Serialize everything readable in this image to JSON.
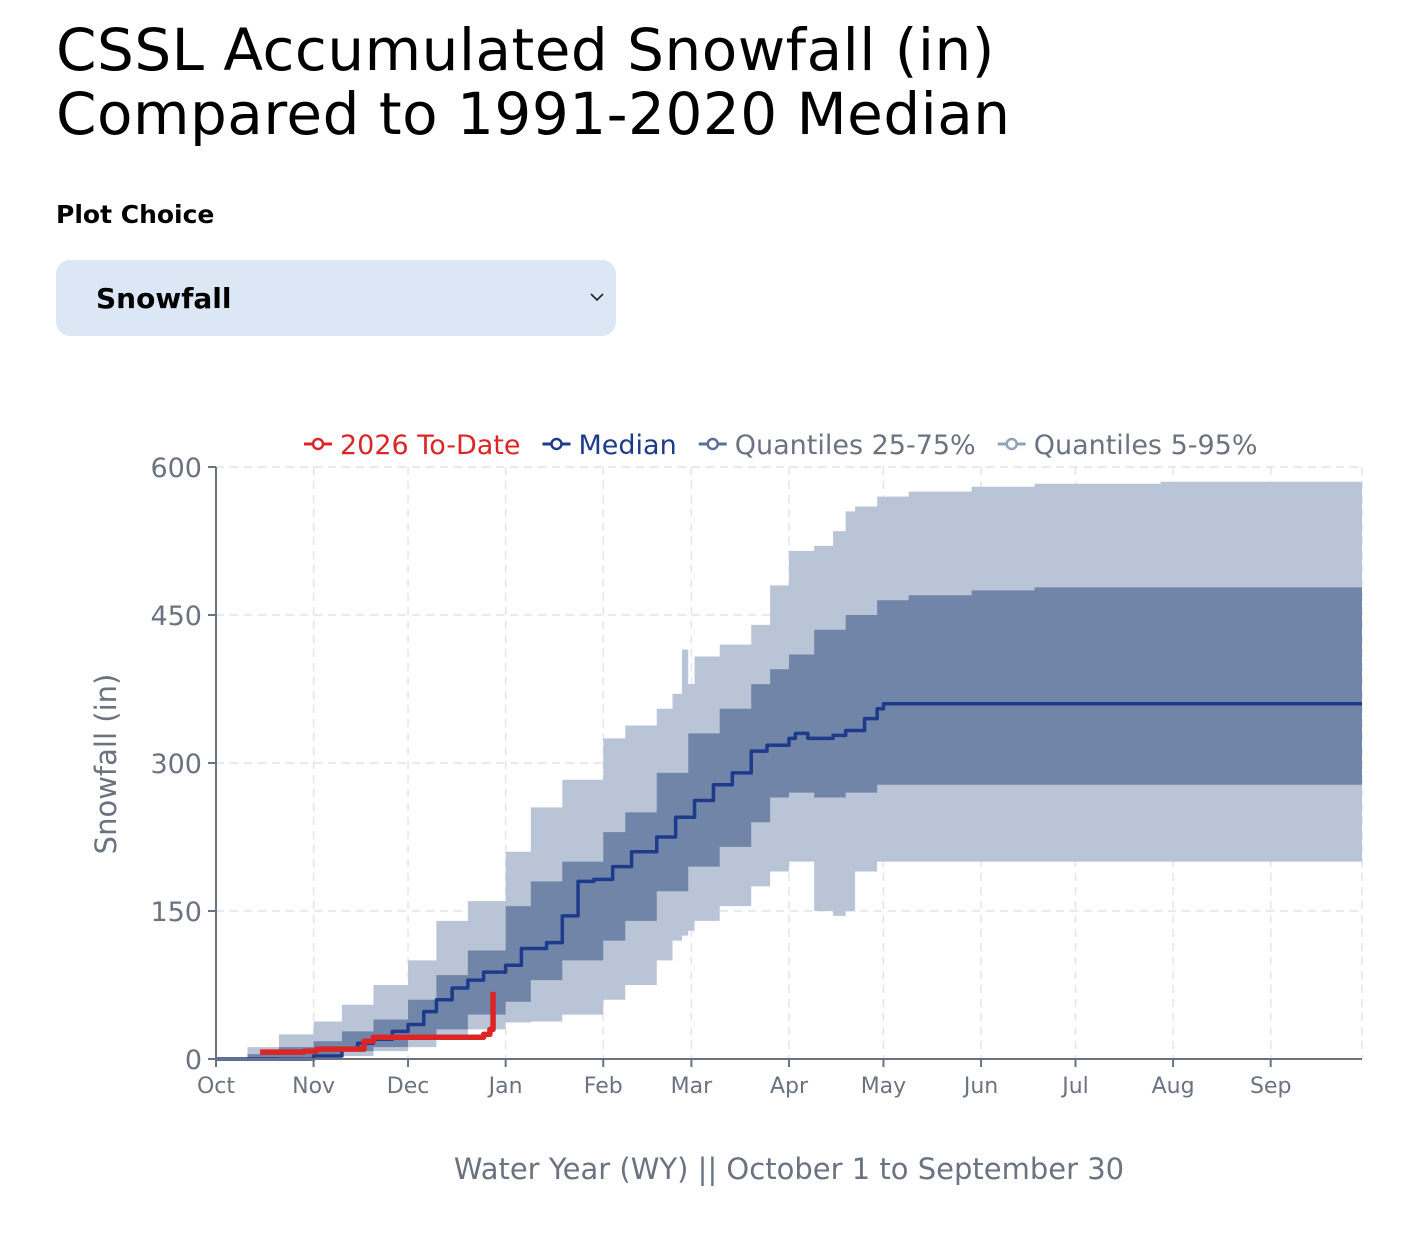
{
  "page": {
    "title_line1": "CSSL Accumulated Snowfall (in)",
    "title_line2": "Compared to 1991-2020 Median"
  },
  "controls": {
    "plot_choice_label": "Plot Choice",
    "plot_choice_value": "Snowfall",
    "chevron_icon": "chevron-down-icon"
  },
  "colors": {
    "to_date": "#dc2626",
    "median": "#1e3a8a",
    "q25_75": "#7185a8",
    "q5_95": "#bac4d7",
    "axis": "#6b7280",
    "grid": "#e2e4e8"
  },
  "chart_data": {
    "type": "area",
    "title": "CSSL Accumulated Snowfall (in) Compared to 1991-2020 Median",
    "xlabel": "Water Year (WY) || October 1 to September 30",
    "ylabel": "Snowfall (in)",
    "x_unit": "day of water year (0 = Oct 1)",
    "xlim": [
      0,
      364
    ],
    "ylim": [
      0,
      600
    ],
    "yticks": [
      0,
      150,
      300,
      450,
      600
    ],
    "ytick_labels": [
      "0",
      "150",
      "300",
      "450",
      "600"
    ],
    "xticks": [
      0,
      31,
      61,
      92,
      123,
      151,
      182,
      212,
      243,
      273,
      304,
      335
    ],
    "xtick_labels": [
      "Oct",
      "Nov",
      "Dec",
      "Jan",
      "Feb",
      "Mar",
      "Apr",
      "May",
      "Jun",
      "Jul",
      "Aug",
      "Sep"
    ],
    "grid": true,
    "legend_position": "top-right",
    "legend": [
      "2026 To-Date",
      "Median",
      "Quantiles 25-75%",
      "Quantiles 5-95%"
    ],
    "series": [
      {
        "name": "Quantiles 5-95%",
        "kind": "band",
        "x": [
          0,
          10,
          20,
          31,
          40,
          50,
          61,
          70,
          80,
          92,
          100,
          110,
          123,
          130,
          140,
          145,
          148,
          150,
          152,
          160,
          170,
          176,
          182,
          190,
          196,
          200,
          203,
          210,
          220,
          240,
          260,
          300,
          364
        ],
        "upper": [
          0,
          12,
          25,
          38,
          55,
          75,
          100,
          140,
          160,
          210,
          255,
          283,
          325,
          338,
          355,
          370,
          415,
          380,
          408,
          420,
          440,
          480,
          515,
          520,
          535,
          555,
          560,
          570,
          575,
          580,
          583,
          585,
          586
        ],
        "lower": [
          0,
          0,
          0,
          0,
          3,
          8,
          12,
          20,
          30,
          37,
          38,
          45,
          60,
          75,
          100,
          120,
          125,
          130,
          140,
          155,
          175,
          190,
          200,
          150,
          145,
          150,
          190,
          200,
          200,
          200,
          200,
          200,
          200
        ]
      },
      {
        "name": "Quantiles 25-75%",
        "kind": "band",
        "x": [
          0,
          10,
          20,
          31,
          40,
          50,
          61,
          70,
          80,
          92,
          100,
          110,
          123,
          130,
          140,
          150,
          160,
          170,
          176,
          182,
          190,
          200,
          210,
          220,
          240,
          260,
          300,
          364
        ],
        "upper": [
          0,
          5,
          12,
          18,
          28,
          40,
          60,
          85,
          110,
          155,
          180,
          200,
          230,
          250,
          290,
          330,
          355,
          380,
          395,
          410,
          435,
          450,
          465,
          470,
          475,
          478,
          478,
          478
        ],
        "lower": [
          0,
          0,
          2,
          4,
          8,
          12,
          20,
          30,
          45,
          58,
          80,
          100,
          120,
          140,
          170,
          195,
          215,
          240,
          265,
          270,
          265,
          270,
          278,
          278,
          278,
          278,
          278,
          278
        ]
      },
      {
        "name": "Median",
        "kind": "line",
        "x": [
          0,
          20,
          31,
          40,
          45,
          50,
          56,
          61,
          66,
          70,
          75,
          80,
          85,
          92,
          97,
          105,
          110,
          115,
          120,
          126,
          132,
          140,
          146,
          152,
          158,
          164,
          170,
          175,
          182,
          184,
          188,
          196,
          200,
          206,
          210,
          212,
          220,
          260,
          300,
          364
        ],
        "values": [
          0,
          0,
          3,
          10,
          16,
          20,
          28,
          35,
          48,
          60,
          72,
          80,
          88,
          95,
          112,
          118,
          145,
          180,
          182,
          195,
          210,
          225,
          245,
          262,
          278,
          290,
          312,
          318,
          325,
          330,
          325,
          328,
          333,
          345,
          355,
          360,
          360,
          360,
          360,
          360
        ]
      },
      {
        "name": "2026 To-Date",
        "kind": "line",
        "x": [
          14,
          22,
          28,
          32,
          40,
          45,
          47,
          50,
          55,
          65,
          75,
          80,
          85,
          87,
          88
        ],
        "values": [
          7,
          7,
          8,
          10,
          10,
          10,
          18,
          22,
          22,
          22,
          22,
          22,
          25,
          30,
          68
        ]
      }
    ]
  }
}
